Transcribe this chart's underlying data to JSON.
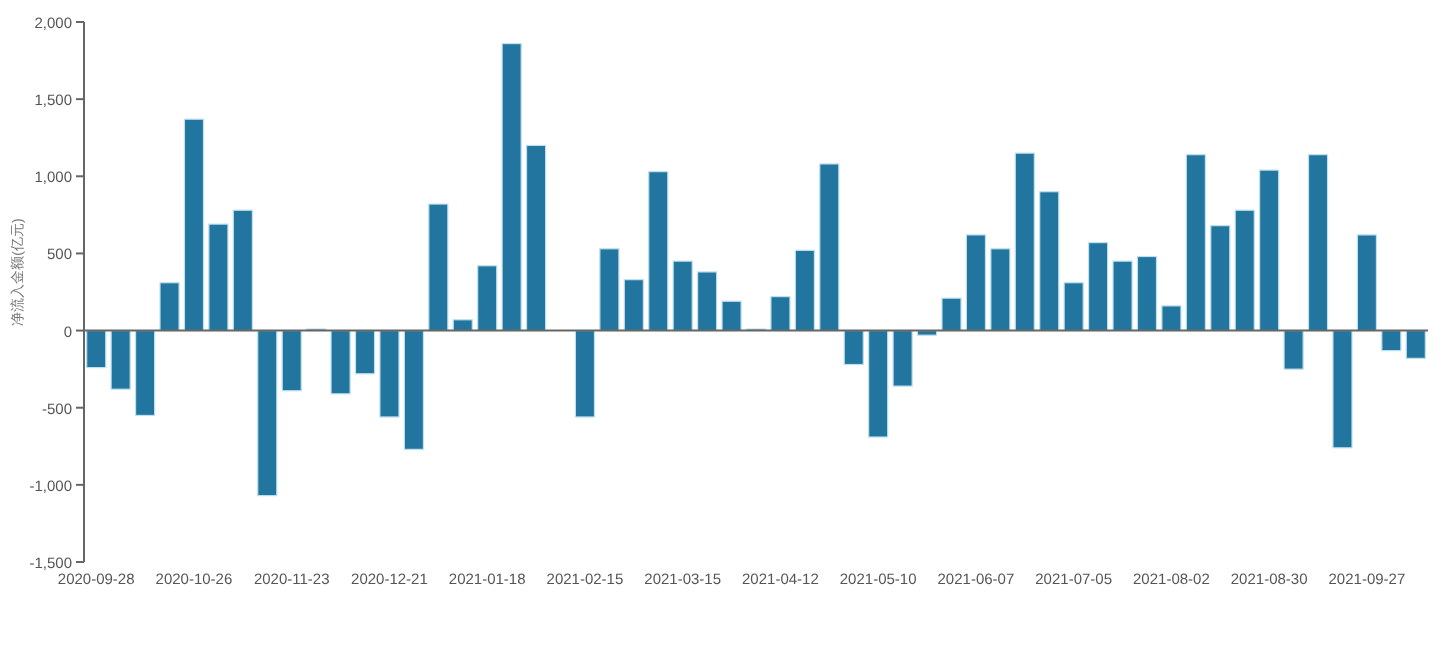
{
  "chart_data": {
    "type": "bar",
    "ylabel": "净流入金额(亿元)",
    "categories": [
      "2020-09-28",
      null,
      null,
      null,
      "2020-10-26",
      null,
      null,
      null,
      "2020-11-23",
      null,
      null,
      null,
      "2020-12-21",
      null,
      null,
      null,
      "2021-01-18",
      null,
      null,
      null,
      "2021-02-15",
      null,
      null,
      null,
      "2021-03-15",
      null,
      null,
      null,
      "2021-04-12",
      null,
      null,
      null,
      "2021-05-10",
      null,
      null,
      null,
      "2021-06-07",
      null,
      null,
      null,
      "2021-07-05",
      null,
      null,
      null,
      "2021-08-02",
      null,
      null,
      null,
      "2021-08-30",
      null,
      null,
      null,
      "2021-09-27",
      null,
      null
    ],
    "values": [
      -240,
      -380,
      -550,
      310,
      1370,
      690,
      780,
      -1070,
      -390,
      10,
      -410,
      -280,
      -560,
      -770,
      820,
      70,
      420,
      1860,
      1200,
      null,
      -560,
      530,
      330,
      1030,
      450,
      380,
      190,
      10,
      220,
      520,
      1080,
      -220,
      -690,
      -360,
      -30,
      210,
      620,
      530,
      1150,
      900,
      310,
      570,
      450,
      480,
      160,
      1140,
      680,
      780,
      1040,
      -250,
      1140,
      -760,
      620,
      -130,
      -180
    ],
    "color": "#21759f",
    "ylim": [
      -1500,
      2000
    ],
    "yticks": [
      {
        "value": -1500,
        "label": "-1,500"
      },
      {
        "value": -1000,
        "label": "-1,000"
      },
      -500,
      0,
      500,
      {
        "value": 1000,
        "label": "1,000"
      },
      {
        "value": 1500,
        "label": "1,500"
      },
      {
        "value": 2000,
        "label": "2,000"
      }
    ]
  }
}
